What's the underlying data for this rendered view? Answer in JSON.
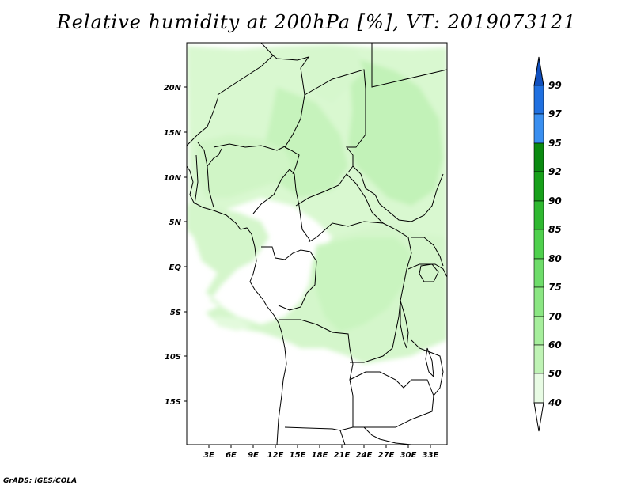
{
  "title": "Relative humidity at 200hPa [%], VT: 2019073121",
  "credit": "GrADS: IGES/COLA",
  "map": {
    "lon_ticks": [
      "3E",
      "6E",
      "9E",
      "12E",
      "15E",
      "18E",
      "21E",
      "24E",
      "27E",
      "30E",
      "33E"
    ],
    "lat_ticks": [
      "20N",
      "15N",
      "10N",
      "5N",
      "EQ",
      "5S",
      "10S",
      "15S"
    ]
  },
  "colorbar": {
    "levels": [
      "40",
      "50",
      "60",
      "70",
      "75",
      "80",
      "85",
      "90",
      "92",
      "95",
      "97",
      "99"
    ],
    "colors": [
      "#ffffff",
      "#e8fbe4",
      "#d4f8cc",
      "#bff3b5",
      "#a6ee9c",
      "#8be683",
      "#6edc6a",
      "#4fd04d",
      "#2fb830",
      "#17a01a",
      "#0a8a10",
      "#3a8ff0",
      "#2070e0",
      "#1050c0"
    ]
  }
}
